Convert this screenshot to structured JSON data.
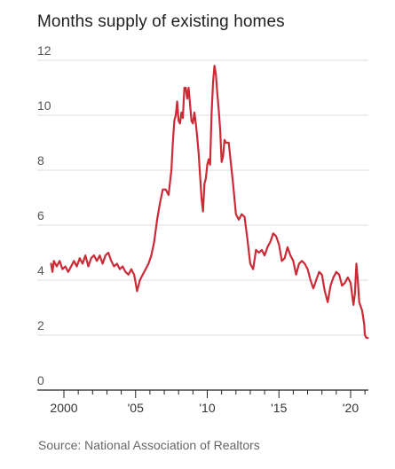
{
  "title": "Months supply of existing homes",
  "source": "Source: National Association of Realtors",
  "colors": {
    "line": "#cc2a36",
    "grid": "#dddddd",
    "axis": "#222222"
  },
  "chart_data": {
    "type": "line",
    "title": "Months supply of existing homes",
    "xlabel": "",
    "ylabel": "",
    "ylim": [
      0,
      12
    ],
    "xlim": [
      2000,
      2021.2
    ],
    "grid": true,
    "yticks": [
      0,
      2,
      4,
      6,
      8,
      10,
      12
    ],
    "xticks": [
      {
        "value": 2000,
        "label": "2000"
      },
      {
        "value": 2005,
        "label": "'05"
      },
      {
        "value": 2010,
        "label": "'10"
      },
      {
        "value": 2015,
        "label": "'15"
      },
      {
        "value": 2020,
        "label": "'20"
      }
    ],
    "series": [
      {
        "points": [
          [
            1999.1,
            4.6
          ],
          [
            1999.2,
            4.3
          ],
          [
            1999.3,
            4.7
          ],
          [
            1999.5,
            4.5
          ],
          [
            1999.7,
            4.7
          ],
          [
            1999.9,
            4.4
          ],
          [
            2000.1,
            4.5
          ],
          [
            2000.3,
            4.3
          ],
          [
            2000.5,
            4.5
          ],
          [
            2000.7,
            4.7
          ],
          [
            2000.9,
            4.5
          ],
          [
            2001.1,
            4.8
          ],
          [
            2001.3,
            4.6
          ],
          [
            2001.5,
            4.9
          ],
          [
            2001.7,
            4.5
          ],
          [
            2001.9,
            4.8
          ],
          [
            2002.1,
            4.9
          ],
          [
            2002.3,
            4.7
          ],
          [
            2002.5,
            4.9
          ],
          [
            2002.7,
            4.6
          ],
          [
            2002.9,
            4.9
          ],
          [
            2003.1,
            5.0
          ],
          [
            2003.3,
            4.7
          ],
          [
            2003.5,
            4.5
          ],
          [
            2003.7,
            4.6
          ],
          [
            2003.9,
            4.4
          ],
          [
            2004.1,
            4.5
          ],
          [
            2004.3,
            4.3
          ],
          [
            2004.5,
            4.2
          ],
          [
            2004.7,
            4.4
          ],
          [
            2004.9,
            4.2
          ],
          [
            2005.0,
            3.9
          ],
          [
            2005.1,
            3.6
          ],
          [
            2005.3,
            4.0
          ],
          [
            2005.5,
            4.2
          ],
          [
            2005.7,
            4.4
          ],
          [
            2005.9,
            4.6
          ],
          [
            2006.1,
            4.9
          ],
          [
            2006.3,
            5.4
          ],
          [
            2006.5,
            6.2
          ],
          [
            2006.7,
            6.8
          ],
          [
            2006.9,
            7.3
          ],
          [
            2007.1,
            7.3
          ],
          [
            2007.3,
            7.1
          ],
          [
            2007.5,
            8.0
          ],
          [
            2007.6,
            9.0
          ],
          [
            2007.7,
            9.8
          ],
          [
            2007.8,
            10.0
          ],
          [
            2007.9,
            10.5
          ],
          [
            2008.0,
            9.8
          ],
          [
            2008.1,
            9.7
          ],
          [
            2008.2,
            10.1
          ],
          [
            2008.3,
            9.9
          ],
          [
            2008.4,
            11.0
          ],
          [
            2008.5,
            11.0
          ],
          [
            2008.6,
            10.6
          ],
          [
            2008.7,
            11.0
          ],
          [
            2008.8,
            10.4
          ],
          [
            2008.9,
            9.8
          ],
          [
            2009.0,
            9.7
          ],
          [
            2009.1,
            10.1
          ],
          [
            2009.2,
            9.7
          ],
          [
            2009.3,
            9.2
          ],
          [
            2009.4,
            8.6
          ],
          [
            2009.5,
            7.8
          ],
          [
            2009.6,
            7.0
          ],
          [
            2009.7,
            6.5
          ],
          [
            2009.8,
            7.5
          ],
          [
            2009.9,
            7.7
          ],
          [
            2010.0,
            8.2
          ],
          [
            2010.1,
            8.4
          ],
          [
            2010.2,
            8.2
          ],
          [
            2010.3,
            10.0
          ],
          [
            2010.4,
            11.2
          ],
          [
            2010.5,
            11.8
          ],
          [
            2010.6,
            11.5
          ],
          [
            2010.7,
            10.8
          ],
          [
            2010.8,
            10.2
          ],
          [
            2010.9,
            9.5
          ],
          [
            2011.0,
            8.3
          ],
          [
            2011.1,
            8.5
          ],
          [
            2011.2,
            9.1
          ],
          [
            2011.3,
            9.0
          ],
          [
            2011.5,
            9.0
          ],
          [
            2011.6,
            8.5
          ],
          [
            2011.8,
            7.5
          ],
          [
            2012.0,
            6.4
          ],
          [
            2012.2,
            6.2
          ],
          [
            2012.4,
            6.4
          ],
          [
            2012.6,
            6.3
          ],
          [
            2012.8,
            5.5
          ],
          [
            2013.0,
            4.6
          ],
          [
            2013.2,
            4.4
          ],
          [
            2013.4,
            5.1
          ],
          [
            2013.6,
            5.0
          ],
          [
            2013.8,
            5.1
          ],
          [
            2014.0,
            4.9
          ],
          [
            2014.2,
            5.2
          ],
          [
            2014.4,
            5.4
          ],
          [
            2014.6,
            5.7
          ],
          [
            2014.8,
            5.6
          ],
          [
            2015.0,
            5.3
          ],
          [
            2015.2,
            4.7
          ],
          [
            2015.4,
            4.8
          ],
          [
            2015.6,
            5.2
          ],
          [
            2015.8,
            4.9
          ],
          [
            2016.0,
            4.7
          ],
          [
            2016.2,
            4.2
          ],
          [
            2016.4,
            4.6
          ],
          [
            2016.6,
            4.7
          ],
          [
            2016.8,
            4.6
          ],
          [
            2017.0,
            4.4
          ],
          [
            2017.2,
            4.0
          ],
          [
            2017.4,
            3.7
          ],
          [
            2017.6,
            4.0
          ],
          [
            2017.8,
            4.3
          ],
          [
            2018.0,
            4.2
          ],
          [
            2018.2,
            3.6
          ],
          [
            2018.4,
            3.2
          ],
          [
            2018.6,
            3.8
          ],
          [
            2018.8,
            4.1
          ],
          [
            2019.0,
            4.3
          ],
          [
            2019.2,
            4.2
          ],
          [
            2019.4,
            3.8
          ],
          [
            2019.6,
            3.9
          ],
          [
            2019.8,
            4.1
          ],
          [
            2020.0,
            3.9
          ],
          [
            2020.2,
            3.1
          ],
          [
            2020.3,
            3.5
          ],
          [
            2020.4,
            4.6
          ],
          [
            2020.5,
            4.0
          ],
          [
            2020.6,
            3.2
          ],
          [
            2020.8,
            2.9
          ],
          [
            2020.95,
            2.4
          ],
          [
            2021.0,
            2.0
          ],
          [
            2021.1,
            1.9
          ],
          [
            2021.2,
            1.9
          ]
        ]
      }
    ]
  }
}
